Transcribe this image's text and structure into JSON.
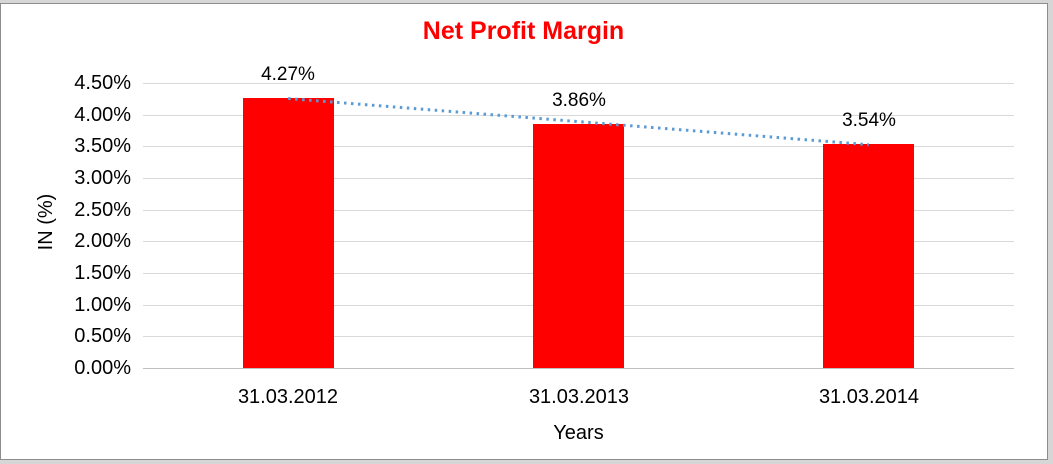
{
  "frame": {
    "margin_color": "#d6d6d6",
    "border_color": "#8c8c8c",
    "background_color": "#ffffff"
  },
  "chart_data": {
    "type": "bar",
    "title": "Net Profit Margin",
    "title_color": "#ff0000",
    "categories": [
      "31.03.2012",
      "31.03.2013",
      "31.03.2014"
    ],
    "values": [
      4.27,
      3.86,
      3.54
    ],
    "value_labels": [
      "4.27%",
      "3.86%",
      "3.54%"
    ],
    "xlabel": "Years",
    "ylabel": "IN (%)",
    "ylim": [
      0,
      4.5
    ],
    "ytick_step": 0.5,
    "yticks": [
      "4.50%",
      "4.00%",
      "3.50%",
      "3.00%",
      "2.50%",
      "2.00%",
      "1.50%",
      "1.00%",
      "0.50%",
      "0.00%"
    ],
    "grid": true,
    "legend": "none",
    "gridline_color": "#d9d9d9",
    "axis_line_color": "#bfbfbf",
    "bar_color": "#ff0000",
    "text_color": "#000000",
    "trendline": {
      "type": "linear",
      "style": "dotted",
      "color": "#5b9bd5"
    }
  }
}
